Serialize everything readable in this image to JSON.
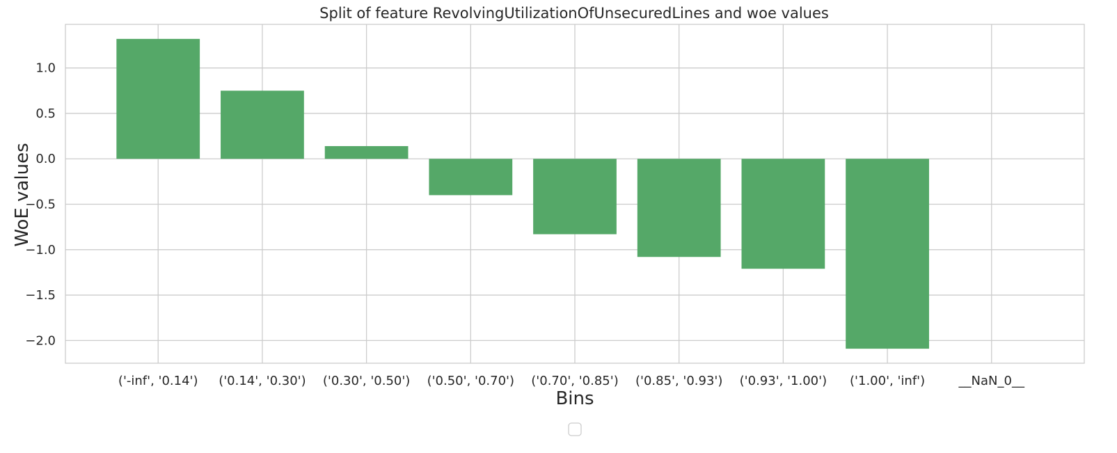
{
  "chart_data": {
    "type": "bar",
    "title": "Split of feature RevolvingUtilizationOfUnsecuredLines and woe values",
    "xlabel": "Bins",
    "ylabel": "WoE values",
    "categories": [
      "('-inf', '0.14')",
      "('0.14', '0.30')",
      "('0.30', '0.50')",
      "('0.50', '0.70')",
      "('0.70', '0.85')",
      "('0.85', '0.93')",
      "('0.93', '1.00')",
      "('1.00', 'inf')",
      "__NaN_0__"
    ],
    "values": [
      1.32,
      0.75,
      0.14,
      -0.4,
      -0.83,
      -1.08,
      -1.21,
      -2.09,
      0.0
    ],
    "ylim": [
      -2.25,
      1.48
    ],
    "yticks": [
      1.0,
      0.5,
      0.0,
      -0.5,
      -1.0,
      -1.5,
      -2.0
    ],
    "ytick_labels": [
      "1.0",
      "0.5",
      "0.0",
      "−0.5",
      "−1.0",
      "−1.5",
      "−2.0"
    ],
    "grid": true,
    "legend": "lower center (empty)",
    "bar_color": "#55a868"
  }
}
